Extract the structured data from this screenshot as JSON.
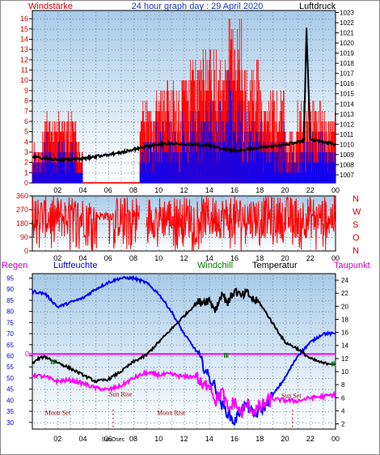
{
  "title": "24 hour graph day : 29 April 2020",
  "colors": {
    "plot_top": "#a8cbe8",
    "plot_bottom": "#ffffff",
    "wind": "#ff0000",
    "wind_avg": "#0000ff",
    "pressure": "#000000",
    "direction": "#ff0000",
    "humidity": "#0000ff",
    "temperature": "#000000",
    "windchill": "#008000",
    "dewpoint": "#ff00ff",
    "rain": "#ff00ff",
    "sun_moon": "#a00000"
  },
  "chart_data": [
    {
      "type": "line",
      "name": "wind-pressure",
      "left_label": "Windstärke",
      "right_label": "Luftdruck",
      "x_ticks": [
        "02",
        "04",
        "06",
        "08",
        "10",
        "12",
        "14",
        "16",
        "18",
        "20",
        "22",
        "00"
      ],
      "y_left_ticks": [
        "0",
        "1",
        "2",
        "3",
        "4",
        "5",
        "6",
        "7",
        "8",
        "9",
        "10",
        "11",
        "12",
        "13",
        "14",
        "15",
        "16"
      ],
      "y_left_range": [
        0,
        16.8
      ],
      "y_right_ticks": [
        "1007",
        "1008",
        "1009",
        "1010",
        "1011",
        "1012",
        "1013",
        "1014",
        "1015",
        "1016",
        "1017",
        "1018",
        "1019",
        "1020",
        "1021",
        "1022",
        "1023"
      ],
      "y_right_range": [
        1006.2,
        1023.2
      ],
      "pressure_hours": [
        0,
        1,
        2,
        3,
        4,
        5,
        6,
        7,
        8,
        9,
        10,
        11,
        12,
        13,
        14,
        15,
        16,
        17,
        18,
        19,
        20,
        21,
        21.5,
        21.7,
        22,
        23,
        24
      ],
      "pressure_values": [
        1008.8,
        1008.6,
        1008.5,
        1008.5,
        1008.6,
        1008.8,
        1009.0,
        1009.2,
        1009.5,
        1009.8,
        1010.0,
        1010.1,
        1010.0,
        1010.0,
        1009.9,
        1009.6,
        1009.4,
        1009.5,
        1009.7,
        1009.8,
        1010.0,
        1010.2,
        1010.4,
        1021.5,
        1010.5,
        1010.3,
        1010.0
      ],
      "wind_regions": [
        {
          "from": 0.0,
          "to": 0.8,
          "gust_max": 4
        },
        {
          "from": 0.8,
          "to": 1.0,
          "gust_max": 6
        },
        {
          "from": 1.0,
          "to": 3.5,
          "gust_max": 7
        },
        {
          "from": 3.5,
          "to": 4.0,
          "gust_max": 4
        },
        {
          "from": 4.0,
          "to": 8.5,
          "gust_max": 0
        },
        {
          "from": 8.5,
          "to": 9.8,
          "gust_max": 8
        },
        {
          "from": 9.8,
          "to": 12.5,
          "gust_max": 10
        },
        {
          "from": 12.5,
          "to": 15.5,
          "gust_max": 13
        },
        {
          "from": 15.5,
          "to": 16.6,
          "gust_max": 16
        },
        {
          "from": 16.6,
          "to": 18.2,
          "gust_max": 12
        },
        {
          "from": 18.2,
          "to": 20.0,
          "gust_max": 9
        },
        {
          "from": 20.0,
          "to": 21.0,
          "gust_max": 5
        },
        {
          "from": 21.0,
          "to": 23.0,
          "gust_max": 8
        },
        {
          "from": 23.0,
          "to": 24.0,
          "gust_max": 7
        }
      ]
    },
    {
      "type": "scatter",
      "name": "wind-direction",
      "y_ticks": [
        "0",
        "90",
        "180",
        "270",
        "360"
      ],
      "y_range": [
        0,
        360
      ],
      "compass_labels": [
        "N",
        "W",
        "S",
        "O",
        "N"
      ],
      "x_ticks": [
        "02",
        "04",
        "06",
        "08",
        "10",
        "12",
        "14",
        "16",
        "18",
        "20",
        "22",
        "00"
      ]
    },
    {
      "type": "line",
      "name": "temperature-humidity",
      "legend": [
        "Regen",
        "Luftfeuchte",
        "Windchill",
        "Temperatur",
        "Taupunkt"
      ],
      "y_left_ticks": [
        "30",
        "35",
        "40",
        "45",
        "50",
        "55",
        "60",
        "65",
        "70",
        "75",
        "80",
        "85",
        "90",
        "95"
      ],
      "y_left_range": [
        27,
        97
      ],
      "y_right_ticks": [
        "2",
        "4",
        "6",
        "8",
        "10",
        "12",
        "14",
        "16",
        "18",
        "20",
        "22",
        "24"
      ],
      "y_right_range": [
        1.2,
        25
      ],
      "rain_value": 0,
      "rain_label": "0",
      "x_ticks": [
        "02",
        "04",
        "06",
        "SunDsec",
        "08",
        "10",
        "12",
        "14",
        "16",
        "18",
        "20",
        "22",
        "00"
      ],
      "x_tick_hours": [
        2,
        4,
        6,
        6.4,
        8,
        10,
        12,
        14,
        16,
        18,
        20,
        22,
        24
      ],
      "humidity_hours": [
        0,
        1,
        2,
        3,
        4,
        5,
        6,
        7,
        8,
        9,
        10,
        11,
        12,
        13,
        14,
        14.5,
        15,
        15.5,
        16,
        16.5,
        17,
        17.5,
        18,
        18.5,
        19,
        20,
        21,
        22,
        23,
        24
      ],
      "humidity_values": [
        89,
        88,
        82,
        84,
        86,
        90,
        93,
        95,
        95,
        93,
        88,
        80,
        70,
        62,
        50,
        46,
        38,
        34,
        30,
        36,
        38,
        33,
        35,
        38,
        42,
        50,
        60,
        66,
        70,
        70
      ],
      "temperature_hours": [
        0,
        0.5,
        1,
        1.5,
        2,
        3,
        4,
        5,
        6,
        7,
        8,
        9,
        9.5,
        10,
        11,
        12,
        13,
        14,
        14.5,
        15,
        15.5,
        16,
        16.5,
        17,
        17.5,
        18,
        19,
        20,
        21,
        22,
        23,
        24
      ],
      "temperature_values": [
        11.2,
        12.0,
        12.3,
        11.8,
        11.4,
        10.5,
        9.5,
        8.5,
        8.8,
        10.0,
        11.5,
        12.5,
        13.5,
        14.5,
        16.5,
        18.5,
        20.5,
        21.0,
        19.5,
        22.0,
        20.5,
        22.5,
        21.5,
        22.0,
        21.0,
        20.5,
        17.5,
        14.5,
        13.5,
        12.0,
        11.3,
        11.2
      ],
      "dewpoint_hours": [
        0,
        1,
        2,
        3,
        4,
        5,
        6,
        7,
        8,
        9,
        10,
        11,
        12,
        13,
        13.5,
        14,
        14.5,
        15,
        15.5,
        16,
        16.5,
        17,
        17.5,
        18,
        19,
        20,
        21,
        22,
        23,
        24
      ],
      "dewpoint_values": [
        9.5,
        9.2,
        8.5,
        8.7,
        8.2,
        7.5,
        7.2,
        7.8,
        9.0,
        9.8,
        9.5,
        9.6,
        9.2,
        9.3,
        7.5,
        8.5,
        5.5,
        7.0,
        4.0,
        5.5,
        3.5,
        5.0,
        4.0,
        4.5,
        5.8,
        5.6,
        5.5,
        6.0,
        6.2,
        6.5
      ],
      "windchill_marks": [
        {
          "hour": 1.5,
          "value": 11.5
        },
        {
          "hour": 23.7,
          "value": 11.2
        },
        {
          "hour": 15.2,
          "value": 12.5
        }
      ],
      "annotations": [
        {
          "label": "Moon Set",
          "hour": 2.0,
          "level": 3.4
        },
        {
          "label": "Sun Rise",
          "hour": 7.0,
          "level": 6.2
        },
        {
          "label": "Moon Rise",
          "hour": 11.0,
          "level": 3.4
        },
        {
          "label": "Sun Set",
          "hour": 20.5,
          "level": 6.0
        }
      ],
      "event_lines": [
        6.4,
        20.6
      ]
    }
  ]
}
